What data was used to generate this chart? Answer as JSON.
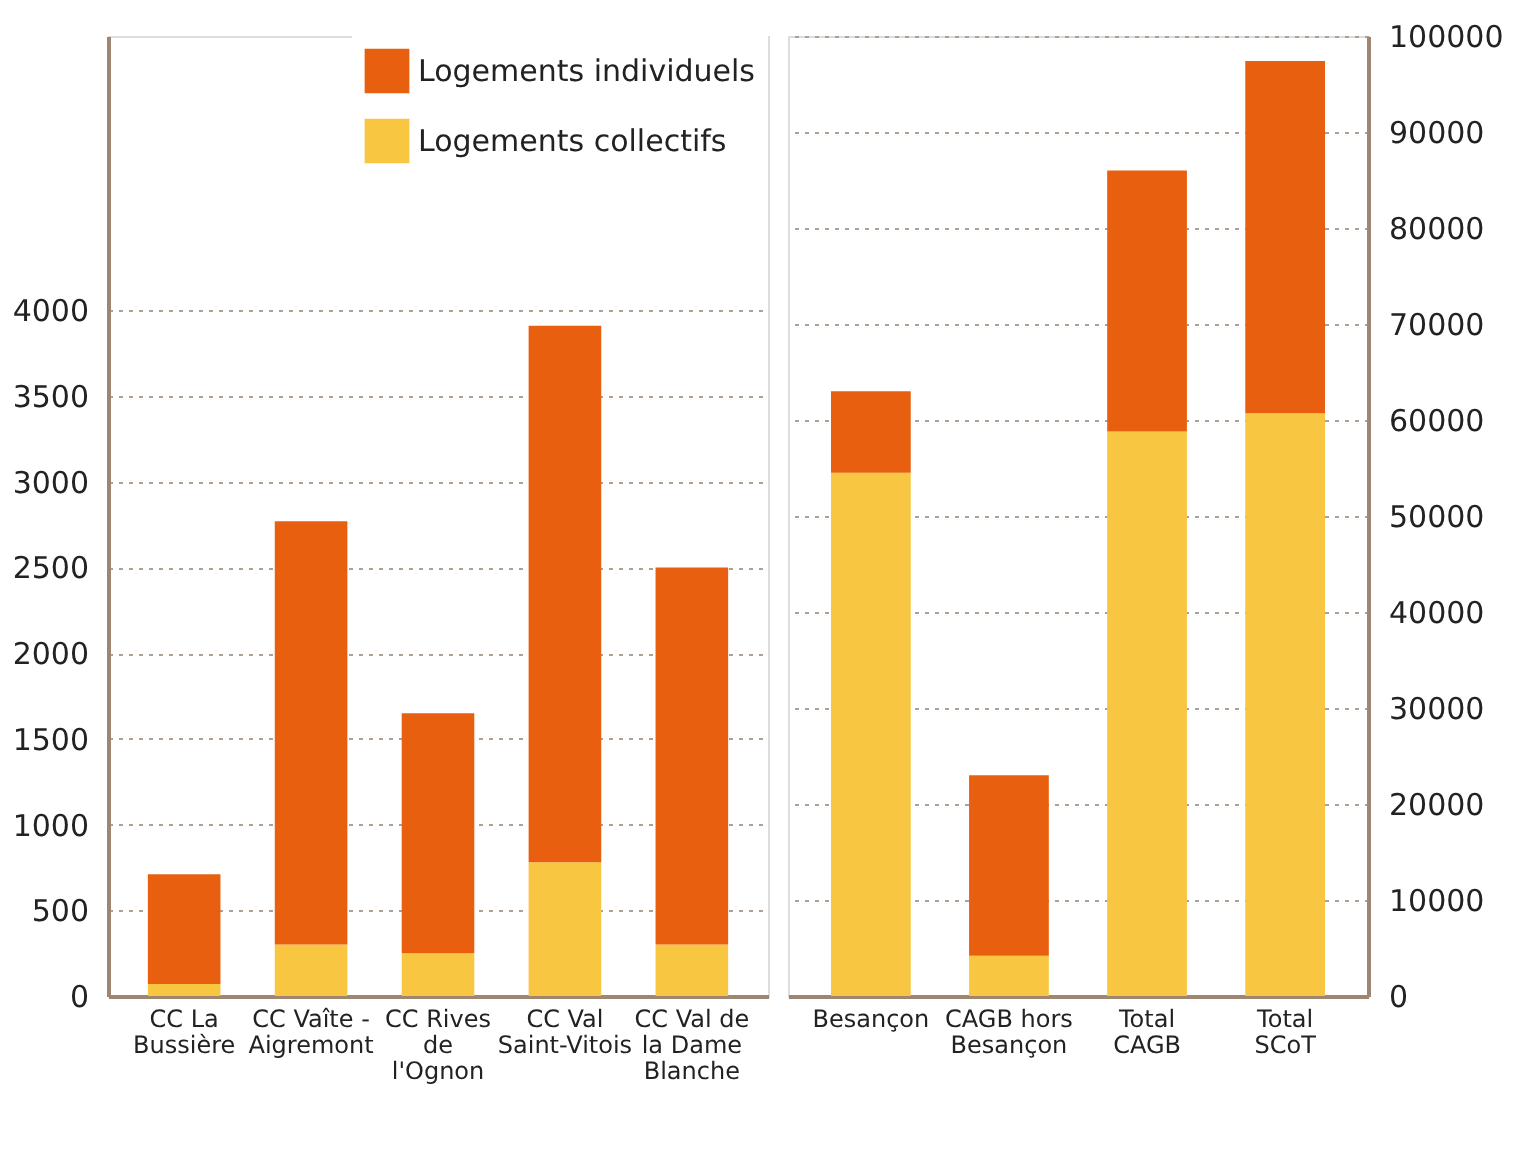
{
  "chart_data": [
    {
      "type": "bar",
      "stacked": true,
      "categories": [
        "CC La Bussière",
        "CC Vaîte - Aigremont",
        "CC Rives de l'Ognon",
        "CC Val Saint-Vitois",
        "CC Val de la Dame Blanche"
      ],
      "series": [
        {
          "name": "Logements collectifs",
          "color": "#f9c642",
          "values": [
            70,
            300,
            250,
            780,
            300
          ]
        },
        {
          "name": "Logements individuels",
          "color": "#e8600f",
          "values": [
            640,
            2470,
            1400,
            3130,
            2200
          ]
        }
      ],
      "ylim": [
        0,
        5600
      ],
      "yticks": [
        0,
        500,
        1000,
        1500,
        2000,
        2500,
        3000,
        3500,
        4000
      ],
      "grid": "y",
      "legend": "top right"
    },
    {
      "type": "bar",
      "stacked": true,
      "categories": [
        "Besançon",
        "CAGB hors Besançon",
        "Total CAGB",
        "Total SCoT"
      ],
      "series": [
        {
          "color": "#f9c642",
          "values": [
            54500,
            4200,
            58800,
            60700
          ]
        },
        {
          "color": "#e8600f",
          "values": [
            8500,
            18800,
            27200,
            36700
          ]
        }
      ],
      "ylim": [
        0,
        100000
      ],
      "yticks": [
        0,
        10000,
        20000,
        30000,
        40000,
        50000,
        60000,
        70000,
        80000,
        90000,
        100000
      ],
      "grid": "y",
      "legend": false
    }
  ]
}
